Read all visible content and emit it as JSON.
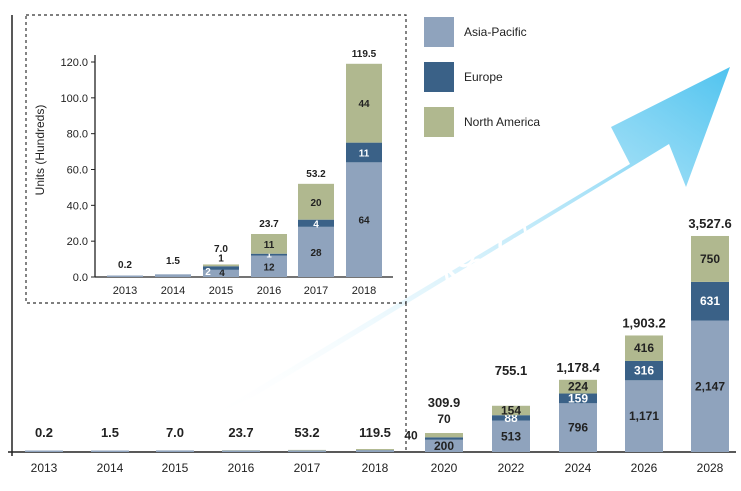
{
  "colors": {
    "asia_pacific": "#8fa3bd",
    "europe": "#3a6187",
    "north_america": "#b0b88f",
    "arrow_start": "#ffffff",
    "arrow_end": "#4fc3ef"
  },
  "legend": {
    "items": [
      {
        "name": "Asia-Pacific",
        "color_key": "asia_pacific"
      },
      {
        "name": "Europe",
        "color_key": "europe"
      },
      {
        "name": "North America",
        "color_key": "north_america"
      }
    ],
    "placement": "top-right"
  },
  "growth": {
    "label": "48.2%"
  },
  "chart_data": [
    {
      "type": "bar",
      "stacked": true,
      "title": "",
      "xlabel": "",
      "ylabel": "",
      "categories": [
        "2013",
        "2014",
        "2015",
        "2016",
        "2017",
        "2018",
        "2020",
        "2022",
        "2024",
        "2026",
        "2028"
      ],
      "totals": [
        "0.2",
        "1.5",
        "7.0",
        "23.7",
        "53.2",
        "119.5",
        "309.9",
        "755.1",
        "1,178.4",
        "1,903.2",
        "3,527.6"
      ],
      "total_values": [
        0.2,
        1.5,
        7.0,
        23.7,
        53.2,
        119.5,
        309.9,
        755.1,
        1178.4,
        1903.2,
        3527.6
      ],
      "series": [
        {
          "name": "Asia-Pacific",
          "values": [
            0.2,
            1.5,
            4,
            12,
            28,
            64,
            200,
            513,
            796,
            1171,
            2147
          ],
          "labels": [
            "",
            "",
            "",
            "",
            "",
            "",
            "200",
            "513",
            "796",
            "1,171",
            "2,147"
          ]
        },
        {
          "name": "Europe",
          "values": [
            0,
            0,
            2,
            1,
            4,
            11,
            40,
            88,
            159,
            316,
            631
          ],
          "labels": [
            "",
            "",
            "",
            "",
            "",
            "",
            "40",
            "88",
            "159",
            "316",
            "631"
          ]
        },
        {
          "name": "North America",
          "values": [
            0,
            0,
            1,
            11,
            20,
            44,
            70,
            154,
            224,
            416,
            750
          ],
          "labels": [
            "",
            "",
            "",
            "",
            "",
            "",
            "70",
            "154",
            "224",
            "416",
            "750"
          ]
        }
      ],
      "ylim": [
        0,
        3527.6
      ],
      "grid": false
    },
    {
      "type": "bar",
      "stacked": true,
      "title": "",
      "xlabel": "",
      "ylabel": "Units (Hundreds)",
      "categories": [
        "2013",
        "2014",
        "2015",
        "2016",
        "2017",
        "2018"
      ],
      "totals": [
        "0.2",
        "1.5",
        "7.0",
        "23.7",
        "53.2",
        "119.5"
      ],
      "total_values": [
        0.2,
        1.5,
        7.0,
        23.7,
        53.2,
        119.5
      ],
      "series": [
        {
          "name": "Asia-Pacific",
          "values": [
            0.2,
            1.5,
            4,
            12,
            28,
            64
          ],
          "labels": [
            "",
            "",
            "4",
            "12",
            "28",
            "64"
          ]
        },
        {
          "name": "Europe",
          "values": [
            0,
            0,
            2,
            1,
            4,
            11
          ],
          "labels": [
            "",
            "",
            "2",
            "1",
            "4",
            "11"
          ]
        },
        {
          "name": "North America",
          "values": [
            0,
            0,
            1,
            11,
            20,
            44
          ],
          "labels": [
            "",
            "",
            "1",
            "11",
            "20",
            "44"
          ]
        }
      ],
      "yticks": [
        "0.0",
        "20.0",
        "40.0",
        "60.0",
        "80.0",
        "100.0",
        "120.0"
      ],
      "ytick_values": [
        0,
        20,
        40,
        60,
        80,
        100,
        120
      ],
      "ylim": [
        0,
        120
      ],
      "grid": false
    }
  ]
}
